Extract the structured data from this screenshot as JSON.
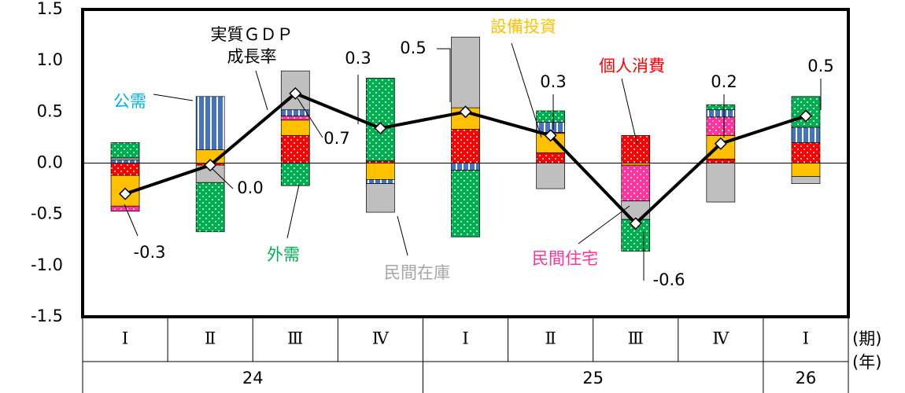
{
  "chart_data": {
    "type": "stacked_bar",
    "categories": [
      "Ⅰ",
      "Ⅱ",
      "Ⅲ",
      "Ⅳ",
      "Ⅰ",
      "Ⅱ",
      "Ⅲ",
      "Ⅳ",
      "Ⅰ"
    ],
    "years": [
      "24",
      null,
      null,
      null,
      "25",
      null,
      null,
      null,
      "26"
    ],
    "x_label": "(期)",
    "x2_label": "(年)",
    "series": [
      {
        "name": "個人消費",
        "color": "#ff0000",
        "values": [
          -0.12,
          -0.02,
          0.27,
          0.02,
          0.33,
          0.1,
          0.27,
          0.04,
          0.2
        ]
      },
      {
        "name": "設備投資",
        "color": "#ffc000",
        "values": [
          -0.3,
          0.13,
          0.15,
          -0.16,
          0.21,
          0.19,
          -0.02,
          0.23,
          -0.13
        ]
      },
      {
        "name": "民間住宅",
        "color": "#ff3399",
        "values": [
          -0.05,
          0.0,
          0.04,
          0.0,
          0.0,
          0.01,
          -0.35,
          0.18,
          0.0
        ]
      },
      {
        "name": "公需",
        "color": "#4472c4",
        "values": [
          0.03,
          0.52,
          0.06,
          -0.04,
          -0.07,
          0.1,
          0.0,
          0.07,
          0.15
        ]
      },
      {
        "name": "民間在庫",
        "color": "#bfbfbf",
        "values": [
          0.02,
          -0.17,
          0.38,
          -0.28,
          0.69,
          -0.25,
          -0.18,
          -0.38,
          -0.07
        ]
      },
      {
        "name": "外需",
        "color": "#00b050",
        "values": [
          0.15,
          -0.48,
          -0.22,
          0.81,
          -0.65,
          0.11,
          -0.31,
          0.05,
          0.3
        ]
      }
    ],
    "line": {
      "name": [
        "実質ＧＤＰ",
        "成長率"
      ],
      "color": "#000000",
      "values": [
        -0.3,
        -0.02,
        0.68,
        0.34,
        0.5,
        0.27,
        -0.59,
        0.19,
        0.46
      ],
      "value_labels": [
        "-0.3",
        "0.0",
        "0.7",
        "0.3",
        "0.5",
        "0.3",
        "-0.6",
        "0.2",
        "0.5"
      ]
    },
    "ylim": [
      -1.5,
      1.5
    ],
    "yticks": [
      -1.5,
      {
        "value": -1.0,
        "label": "-1.0"
      },
      -0.5,
      {
        "value": 0.0,
        "label": "0.0"
      },
      0.5,
      {
        "value": 1.0,
        "label": "1.0"
      },
      1.5
    ],
    "grid": false
  }
}
